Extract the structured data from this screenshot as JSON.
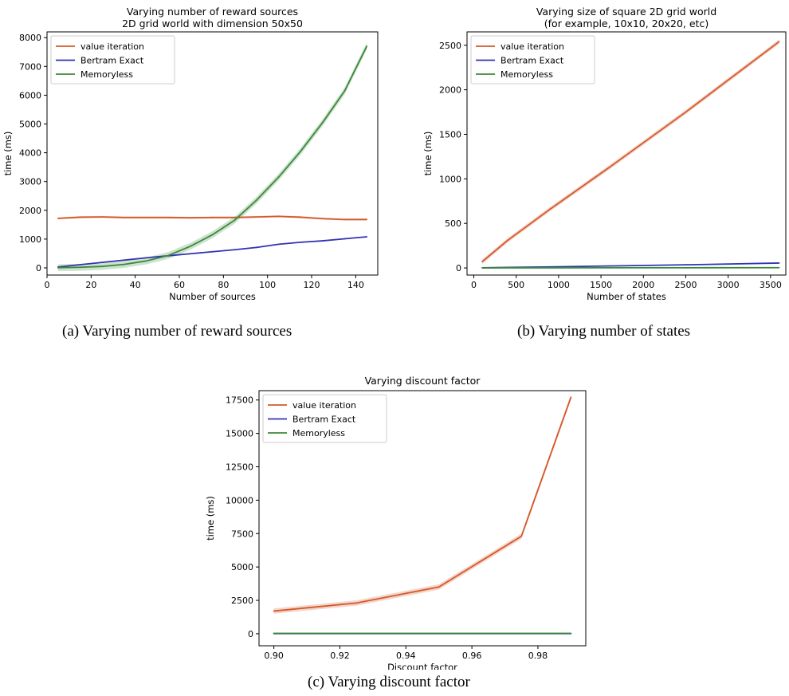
{
  "chart_data": [
    {
      "id": "a",
      "type": "line",
      "title": "Varying number of reward sources",
      "subtitle": "2D grid world with dimension 50x50",
      "xlabel": "Number of sources",
      "ylabel": "time (ms)",
      "xlim": [
        0,
        150
      ],
      "ylim": [
        -250,
        8200
      ],
      "xticks": [
        0,
        20,
        40,
        60,
        80,
        100,
        120,
        140
      ],
      "yticks": [
        0,
        1000,
        2000,
        3000,
        4000,
        5000,
        6000,
        7000,
        8000
      ],
      "xtick_labels": [
        "0",
        "20",
        "40",
        "60",
        "80",
        "100",
        "120",
        "140"
      ],
      "ytick_labels": [
        "0",
        "1000",
        "2000",
        "3000",
        "4000",
        "5000",
        "6000",
        "7000",
        "8000"
      ],
      "legend": "top-left",
      "grid": false,
      "caption": "(a) Varying number of reward sources",
      "series": [
        {
          "name": "value iteration",
          "color": "#d4582a",
          "band": 35,
          "x": [
            5,
            15,
            25,
            35,
            45,
            55,
            65,
            75,
            85,
            95,
            105,
            115,
            125,
            135,
            145
          ],
          "y": [
            1720,
            1760,
            1770,
            1750,
            1750,
            1750,
            1740,
            1750,
            1750,
            1770,
            1790,
            1760,
            1710,
            1680,
            1680
          ]
        },
        {
          "name": "Bertram Exact",
          "color": "#3232b4",
          "band": 0,
          "x": [
            5,
            15,
            25,
            35,
            45,
            55,
            65,
            75,
            85,
            95,
            105,
            115,
            125,
            135,
            145
          ],
          "y": [
            30,
            110,
            190,
            270,
            350,
            420,
            490,
            560,
            630,
            710,
            820,
            890,
            940,
            1010,
            1080
          ]
        },
        {
          "name": "Memoryless",
          "color": "#3a8a3a",
          "band": 120,
          "x": [
            5,
            15,
            25,
            35,
            45,
            55,
            65,
            75,
            85,
            95,
            105,
            115,
            125,
            135,
            145
          ],
          "y": [
            5,
            20,
            50,
            120,
            240,
            430,
            750,
            1150,
            1650,
            2350,
            3150,
            4050,
            5050,
            6150,
            7700
          ]
        }
      ]
    },
    {
      "id": "b",
      "type": "line",
      "title": "Varying size of square 2D grid world",
      "subtitle": "(for example, 10x10, 20x20, etc)",
      "xlabel": "Number of states",
      "ylabel": "time (ms)",
      "xlim": [
        -80,
        3680
      ],
      "ylim": [
        -80,
        2650
      ],
      "xticks": [
        0,
        500,
        1000,
        1500,
        2000,
        2500,
        3000,
        3500
      ],
      "yticks": [
        0,
        500,
        1000,
        1500,
        2000,
        2500
      ],
      "xtick_labels": [
        "0",
        "500",
        "1000",
        "1500",
        "2000",
        "2500",
        "3000",
        "3500"
      ],
      "ytick_labels": [
        "0",
        "500",
        "1000",
        "1500",
        "2000",
        "2500"
      ],
      "legend": "top-left",
      "grid": false,
      "caption": "(b) Varying number of states",
      "series": [
        {
          "name": "value iteration",
          "color": "#d4582a",
          "band": 25,
          "x": [
            100,
            400,
            900,
            1600,
            2500,
            3600
          ],
          "y": [
            70,
            310,
            660,
            1130,
            1750,
            2540
          ]
        },
        {
          "name": "Bertram Exact",
          "color": "#3232b4",
          "band": 0,
          "x": [
            100,
            400,
            900,
            1600,
            2500,
            3600
          ],
          "y": [
            2,
            6,
            12,
            22,
            35,
            55
          ]
        },
        {
          "name": "Memoryless",
          "color": "#3a8a3a",
          "band": 0,
          "x": [
            100,
            400,
            900,
            1600,
            2500,
            3600
          ],
          "y": [
            0,
            1,
            1,
            2,
            2,
            3
          ]
        }
      ]
    },
    {
      "id": "c",
      "type": "line",
      "title": "Varying discount factor",
      "subtitle": "",
      "xlabel": "Discount factor",
      "ylabel": "time (ms)",
      "xlim": [
        0.8955,
        0.9945
      ],
      "ylim": [
        -900,
        18200
      ],
      "xticks": [
        0.9,
        0.92,
        0.94,
        0.96,
        0.98
      ],
      "yticks": [
        0,
        2500,
        5000,
        7500,
        10000,
        12500,
        15000,
        17500
      ],
      "xtick_labels": [
        "0.90",
        "0.92",
        "0.94",
        "0.96",
        "0.98"
      ],
      "ytick_labels": [
        "0",
        "2500",
        "5000",
        "7500",
        "10000",
        "12500",
        "15000",
        "17500"
      ],
      "legend": "top-left",
      "grid": false,
      "caption": "(c) Varying discount factor",
      "series": [
        {
          "name": "value iteration",
          "color": "#d4582a",
          "band": 200,
          "x": [
            0.9,
            0.925,
            0.95,
            0.975,
            0.99
          ],
          "y": [
            1700,
            2300,
            3500,
            7300,
            17700
          ]
        },
        {
          "name": "Bertram Exact",
          "color": "#3232b4",
          "band": 0,
          "x": [
            0.9,
            0.925,
            0.95,
            0.975,
            0.99
          ],
          "y": [
            15,
            15,
            15,
            15,
            15
          ]
        },
        {
          "name": "Memoryless",
          "color": "#3a8a3a",
          "band": 0,
          "x": [
            0.9,
            0.925,
            0.95,
            0.975,
            0.99
          ],
          "y": [
            25,
            25,
            25,
            25,
            25
          ]
        }
      ]
    }
  ]
}
